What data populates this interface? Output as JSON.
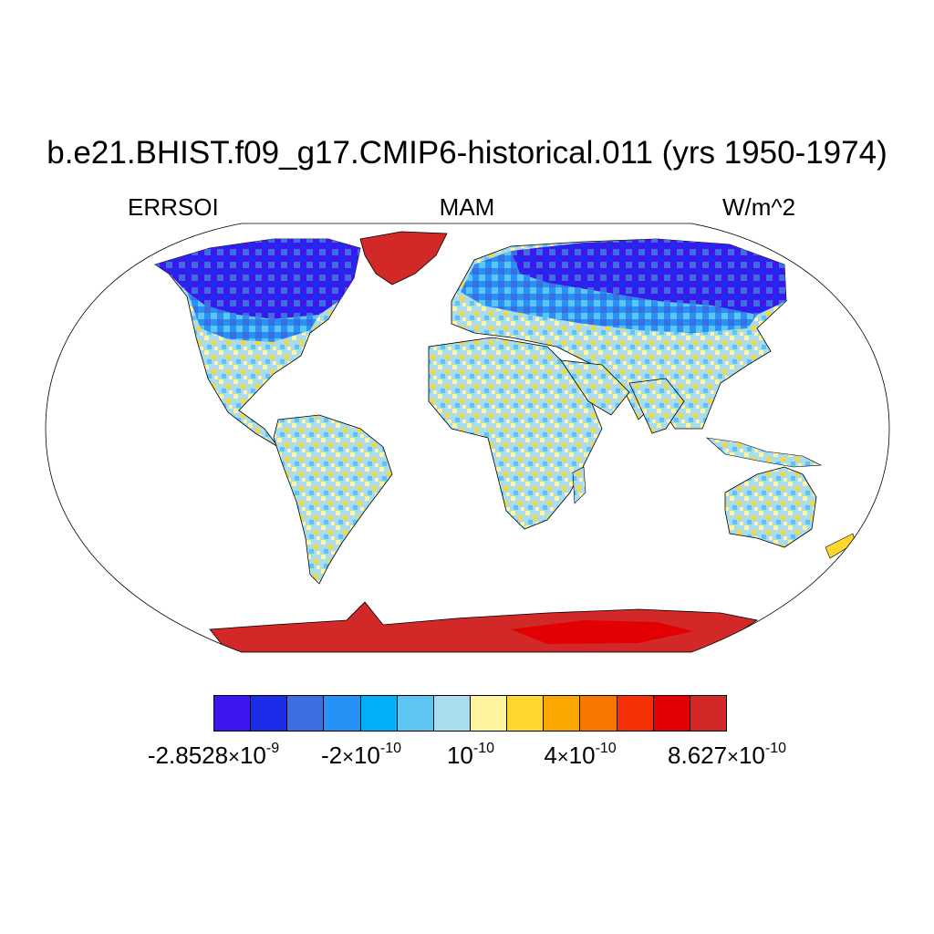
{
  "title": "b.e21.BHIST.f09_g17.CMIP6-historical.011 (yrs 1950-1974)",
  "left_label": "ERRSOI",
  "center_label": "MAM",
  "right_label": "W/m^2",
  "colorbar": {
    "colors": [
      "#4016f0",
      "#1c2ce8",
      "#3b6fe0",
      "#2692f8",
      "#00b0f8",
      "#5ec4f2",
      "#aadcf0",
      "#fff59e",
      "#fdd72e",
      "#fba700",
      "#f97600",
      "#f73006",
      "#e20002",
      "#d22828"
    ],
    "labels": [
      {
        "mantissa": "-2.8528",
        "exponent": "-9"
      },
      {
        "mantissa": "-2",
        "exponent": "-10"
      },
      {
        "mantissa": "",
        "exponent": "-10"
      },
      {
        "mantissa": "4",
        "exponent": "-10"
      },
      {
        "mantissa": "8.627",
        "exponent": "-10"
      }
    ]
  },
  "colors": {
    "land_default": "#aadcf0",
    "greenland": "#d22828",
    "antarctica": "#d22828",
    "outline": "#000000"
  }
}
